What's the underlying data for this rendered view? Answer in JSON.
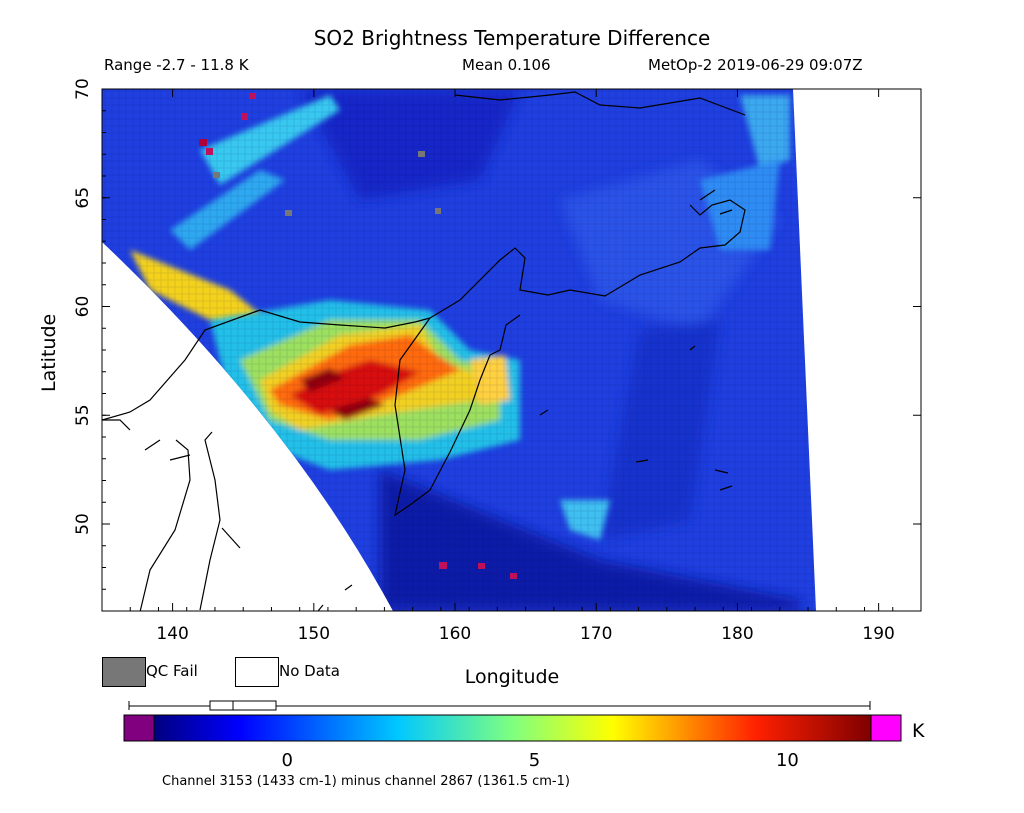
{
  "header": {
    "title": "SO2 Brightness Temperature Difference",
    "range": "Range -2.7 - 11.8 K",
    "mean": "Mean 0.106",
    "satellite": "MetOp-2 2019-06-29 09:07Z"
  },
  "axes": {
    "xlabel": "Longitude",
    "ylabel": "Latitude",
    "x_ticks": [
      "140",
      "150",
      "160",
      "170",
      "180",
      "190"
    ],
    "y_ticks": [
      "50",
      "55",
      "60",
      "65",
      "70"
    ],
    "lon_range": [
      135,
      193
    ],
    "lat_range": [
      46,
      70
    ]
  },
  "legend": {
    "qc_fail": "QC Fail",
    "no_data": "No Data",
    "qc_color": "#777777",
    "no_data_color": "#ffffff"
  },
  "colorbar": {
    "unit": "K",
    "ticks": [
      "0",
      "5",
      "10"
    ],
    "range": [
      -2.7,
      11.8
    ],
    "under_color": "#800080",
    "over_color": "#ff00ff",
    "footer": "Channel 3153 (1433 cm-1) minus channel 2867 (1361.5 cm-1)"
  }
}
